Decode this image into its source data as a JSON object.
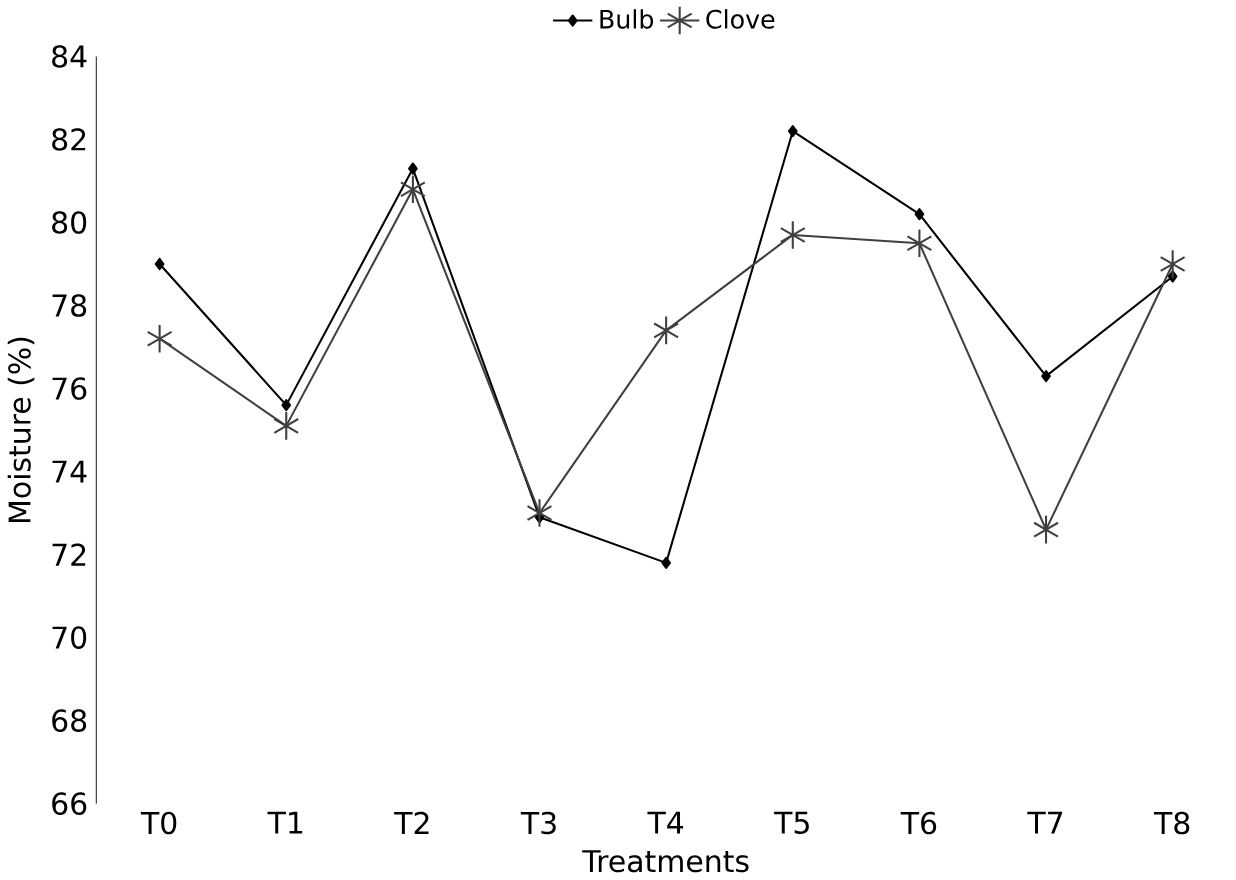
{
  "chart_data": {
    "type": "line",
    "xlabel": "Treatments",
    "ylabel": "Moisture (%)",
    "categories": [
      "T0",
      "T1",
      "T2",
      "T3",
      "T4",
      "T5",
      "T6",
      "T7",
      "T8"
    ],
    "series": [
      {
        "name": "Bulb",
        "color": "#000000",
        "marker": "diamond",
        "values": [
          79.0,
          75.6,
          81.3,
          72.9,
          71.8,
          82.2,
          80.2,
          76.3,
          78.7
        ]
      },
      {
        "name": "Clove",
        "color": "#404040",
        "marker": "cross",
        "values": [
          77.2,
          75.1,
          80.8,
          73.0,
          77.4,
          79.7,
          79.5,
          72.6,
          79.0
        ]
      }
    ],
    "ylim": [
      66,
      84
    ],
    "yticks": [
      66,
      68,
      70,
      72,
      74,
      76,
      78,
      80,
      82,
      84
    ],
    "grid": false,
    "legend": "top"
  }
}
